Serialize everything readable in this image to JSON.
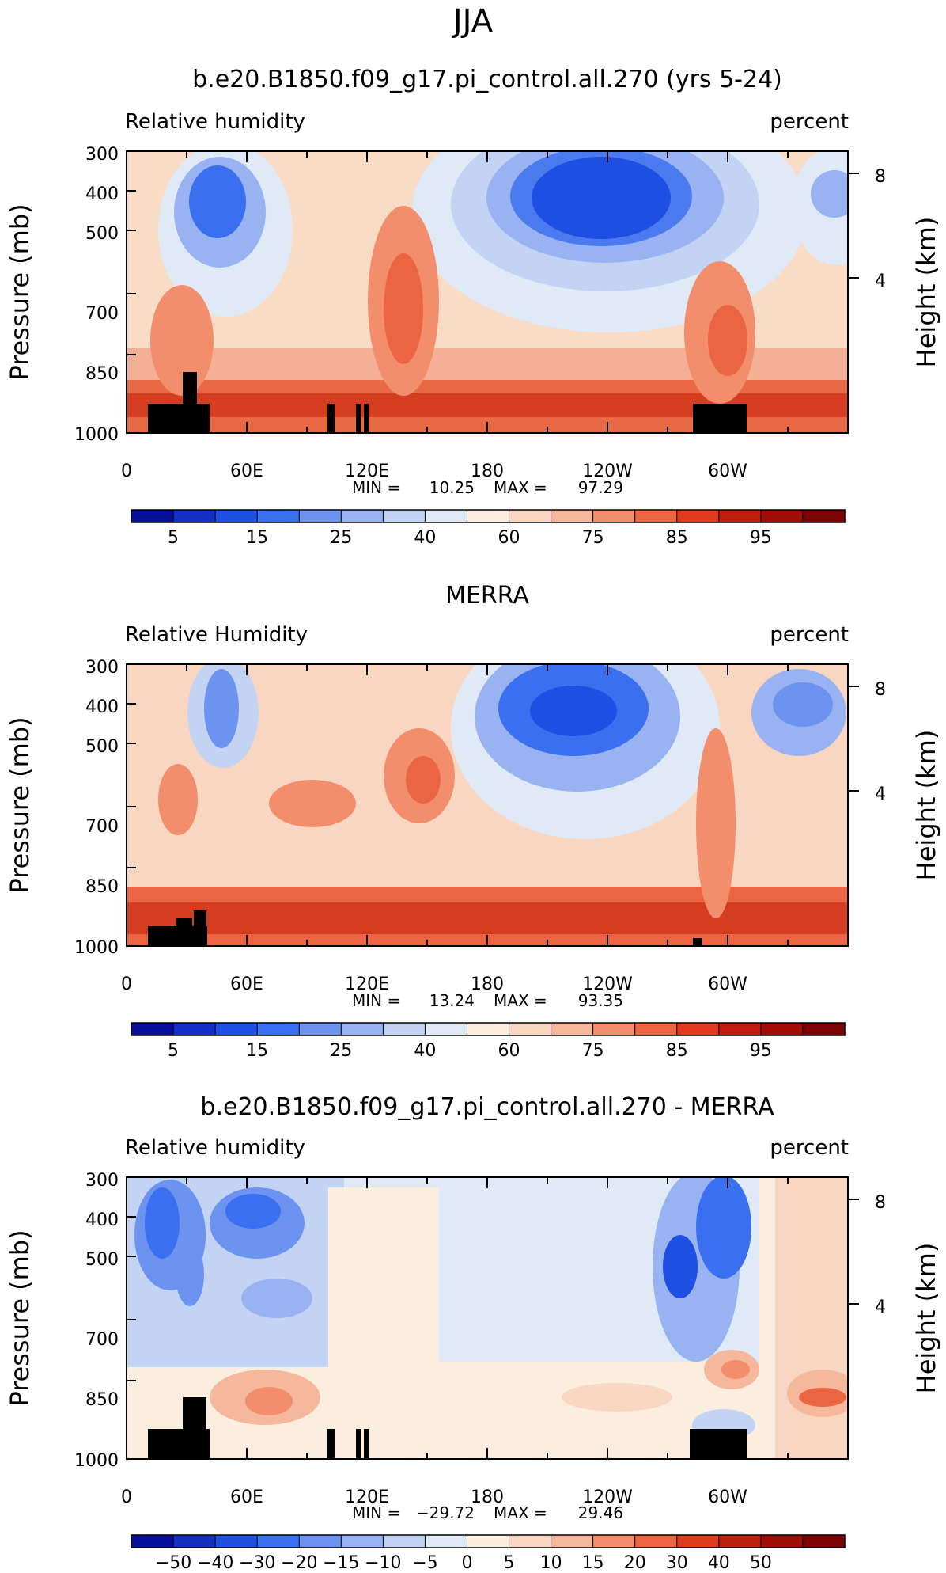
{
  "figure": {
    "season": "JJA"
  },
  "colorbar_colors": {
    "abs": [
      "#08109a",
      "#1230c4",
      "#1e4fe3",
      "#3a6ff0",
      "#6d93f0",
      "#98b2f2",
      "#c3d3f4",
      "#e0eaf6",
      "#fbeedf",
      "#f9d6c1",
      "#f6b89c",
      "#f38e6d",
      "#ec6543",
      "#e03a1f",
      "#c01e0e",
      "#a00f07",
      "#7d0404"
    ],
    "diff": [
      "#08109a",
      "#1230c4",
      "#1e4fe3",
      "#3a6ff0",
      "#6d93f0",
      "#98b2f2",
      "#c3d3f4",
      "#e0eaf6",
      "#fbeedf",
      "#f9d6c1",
      "#f6b89c",
      "#f38e6d",
      "#ec6543",
      "#e03a1f",
      "#c01e0e",
      "#a00f07",
      "#7d0404"
    ]
  },
  "chart_data": [
    {
      "type": "heatmap",
      "title": "b.e20.B1850.f09_g17.pi_control.all.270 (yrs 5-24)",
      "left_label": "Relative humidity",
      "right_label": "percent",
      "ylabel": "Pressure (mb)",
      "y2label": "Height (km)",
      "xticks": [
        "0",
        "60E",
        "120E",
        "180",
        "120W",
        "60W"
      ],
      "yticks": [
        "300",
        "400",
        "500",
        "700",
        "850",
        "1000"
      ],
      "y2ticks": [
        "8",
        "4"
      ],
      "ylim": [
        1000,
        300
      ],
      "stats": {
        "min_label": "MIN =",
        "min": "10.25",
        "max_label": "MAX =",
        "max": "97.29"
      },
      "colorbar_levels": [
        "5",
        "15",
        "25",
        "40",
        "60",
        "75",
        "85",
        "95"
      ]
    },
    {
      "type": "heatmap",
      "title": "MERRA",
      "left_label": "Relative Humidity",
      "right_label": "percent",
      "ylabel": "Pressure (mb)",
      "y2label": "Height (km)",
      "xticks": [
        "0",
        "60E",
        "120E",
        "180",
        "120W",
        "60W"
      ],
      "yticks": [
        "300",
        "400",
        "500",
        "700",
        "850",
        "1000"
      ],
      "y2ticks": [
        "8",
        "4"
      ],
      "ylim": [
        1000,
        300
      ],
      "stats": {
        "min_label": "MIN =",
        "min": "13.24",
        "max_label": "MAX =",
        "max": "93.35"
      },
      "colorbar_levels": [
        "5",
        "15",
        "25",
        "40",
        "60",
        "75",
        "85",
        "95"
      ]
    },
    {
      "type": "heatmap",
      "title": "b.e20.B1850.f09_g17.pi_control.all.270 - MERRA",
      "left_label": "Relative humidity",
      "right_label": "percent",
      "ylabel": "Pressure (mb)",
      "y2label": "Height (km)",
      "xticks": [
        "0",
        "60E",
        "120E",
        "180",
        "120W",
        "60W"
      ],
      "yticks": [
        "300",
        "400",
        "500",
        "700",
        "850",
        "1000"
      ],
      "y2ticks": [
        "8",
        "4"
      ],
      "ylim": [
        1000,
        300
      ],
      "stats": {
        "min_label": "MIN =",
        "min": "−29.72",
        "max_label": "MAX =",
        "max": "29.46"
      },
      "colorbar_levels": [
        "−50",
        "−40",
        "−30",
        "−20",
        "−15",
        "−10",
        "−5",
        "0",
        "5",
        "10",
        "15",
        "20",
        "30",
        "40",
        "50"
      ]
    }
  ]
}
